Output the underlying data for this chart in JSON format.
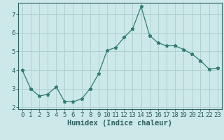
{
  "x": [
    0,
    1,
    2,
    3,
    4,
    5,
    6,
    7,
    8,
    9,
    10,
    11,
    12,
    13,
    14,
    15,
    16,
    17,
    18,
    19,
    20,
    21,
    22,
    23
  ],
  "y": [
    4.0,
    3.0,
    2.6,
    2.7,
    3.1,
    2.3,
    2.3,
    2.45,
    3.0,
    3.8,
    5.05,
    5.2,
    5.75,
    6.2,
    7.4,
    5.85,
    5.45,
    5.3,
    5.3,
    5.1,
    4.85,
    4.5,
    4.05,
    4.1
  ],
  "xlabel": "Humidex (Indice chaleur)",
  "line_color": "#2e7d6e",
  "marker": "*",
  "bg_color": "#cce8e8",
  "grid_color": "#b0d0d0",
  "tick_color": "#2e6060",
  "axis_color": "#2e6060",
  "xlim_lo": -0.5,
  "xlim_hi": 23.5,
  "ylim": [
    1.9,
    7.6
  ],
  "yticks": [
    2,
    3,
    4,
    5,
    6,
    7
  ],
  "xticks": [
    0,
    1,
    2,
    3,
    4,
    5,
    6,
    7,
    8,
    9,
    10,
    11,
    12,
    13,
    14,
    15,
    16,
    17,
    18,
    19,
    20,
    21,
    22,
    23
  ],
  "xlabel_fontsize": 7.5,
  "tick_fontsize": 6.5
}
